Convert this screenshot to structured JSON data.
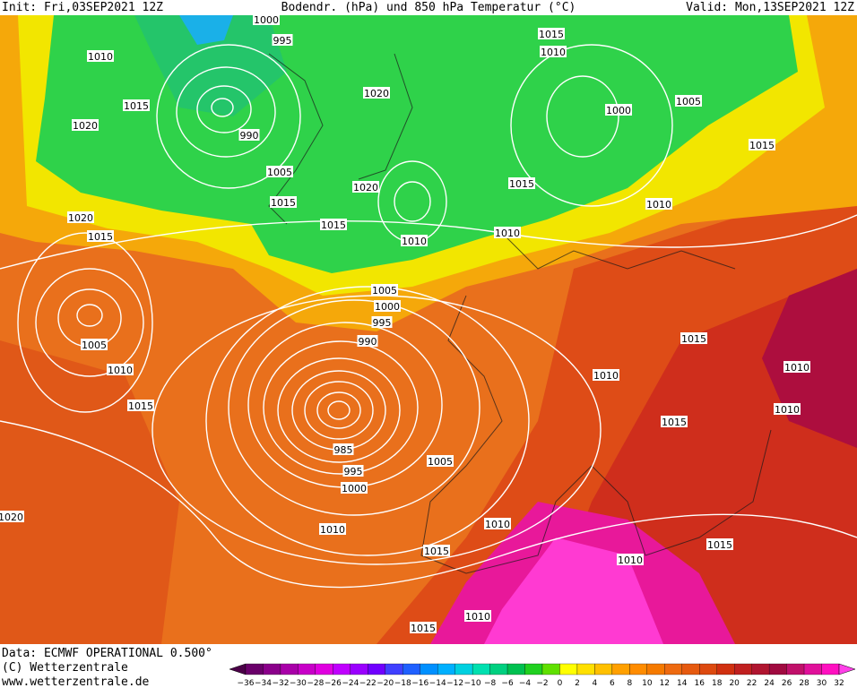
{
  "header": {
    "init": "Init: Fri,03SEP2021 12Z",
    "title": "Bodendr. (hPa) und 850 hPa Temperatur (°C)",
    "valid": "Valid: Mon,13SEP2021 12Z"
  },
  "footer": {
    "source": "Data: ECMWF OPERATIONAL 0.500°",
    "copyright": "(C) Wetterzentrale",
    "website": "www.wetterzentrale.de"
  },
  "isobar_labels": [
    "1000",
    "995",
    "1010",
    "1015",
    "1020",
    "990",
    "1005",
    "1015",
    "1020",
    "1020",
    "1015",
    "1010",
    "1015",
    "1010",
    "1015",
    "1010",
    "1000",
    "1005",
    "1015",
    "1010",
    "1020",
    "1015",
    "1005",
    "1010",
    "1015",
    "1005",
    "1000",
    "995",
    "990",
    "985",
    "995",
    "1000",
    "1010",
    "1005",
    "1010",
    "1015",
    "1010",
    "1015",
    "1010",
    "1015",
    "1015",
    "1010",
    "1015",
    "1010",
    "1010",
    "1020"
  ],
  "colorbar": {
    "labels": [
      "−36",
      "−34",
      "−32",
      "−30",
      "−28",
      "−26",
      "−24",
      "−22",
      "−20",
      "−18",
      "−16",
      "−14",
      "−12",
      "−10",
      "−8",
      "−6",
      "−4",
      "−2",
      "0",
      "2",
      "4",
      "6",
      "8",
      "10",
      "12",
      "14",
      "16",
      "18",
      "20",
      "22",
      "24",
      "26",
      "28",
      "30",
      "32"
    ],
    "colors": [
      "#4b0048",
      "#6a006a",
      "#8a008a",
      "#a800a8",
      "#c800c8",
      "#e000e0",
      "#c000ff",
      "#9a00ff",
      "#7000ff",
      "#4040ff",
      "#2060ff",
      "#0090ff",
      "#00b0ff",
      "#00d0e0",
      "#00e0b0",
      "#00d080",
      "#00c050",
      "#20d020",
      "#60e000",
      "#ffff00",
      "#ffe000",
      "#ffc000",
      "#ffa000",
      "#ff8c00",
      "#f57a00",
      "#ee6a10",
      "#e65a10",
      "#dd4a10",
      "#d03010",
      "#c02020",
      "#b01530",
      "#a00a40",
      "#c0106a",
      "#e0109a",
      "#ff10c0",
      "#ff40e8"
    ]
  }
}
